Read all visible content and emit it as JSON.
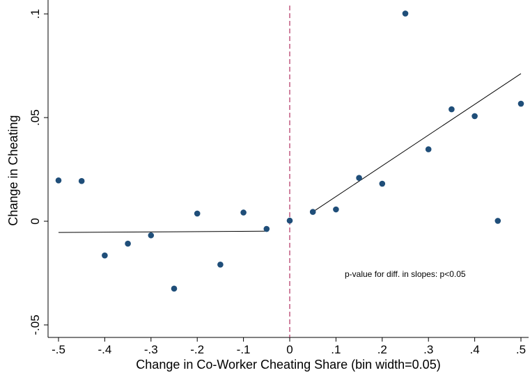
{
  "chart_data": {
    "type": "scatter",
    "xlabel": "Change in Co-Worker Cheating Share (bin width=0.05)",
    "ylabel": "Change in Cheating",
    "xlim": [
      -0.5,
      0.5
    ],
    "ylim": [
      -0.05,
      0.1
    ],
    "x_ticks": [
      -0.5,
      -0.4,
      -0.3,
      -0.2,
      -0.1,
      0,
      0.1,
      0.2,
      0.3,
      0.4,
      0.5
    ],
    "x_tick_labels": [
      "-.5",
      "-.4",
      "-.3",
      "-.2",
      "-.1",
      "0",
      ".1",
      ".2",
      ".3",
      ".4",
      ".5"
    ],
    "y_ticks": [
      -0.05,
      0,
      0.05,
      0.1
    ],
    "y_tick_labels": [
      "-.05",
      "0",
      ".05",
      ".1"
    ],
    "grid": false,
    "legend": "none",
    "series": [
      {
        "type": "scatter",
        "color": "#1f4e79",
        "points": [
          [
            -0.5,
            0.0197
          ],
          [
            -0.45,
            0.0194
          ],
          [
            -0.4,
            -0.0165
          ],
          [
            -0.35,
            -0.0108
          ],
          [
            -0.3,
            -0.0068
          ],
          [
            -0.25,
            -0.0325
          ],
          [
            -0.2,
            0.0037
          ],
          [
            -0.15,
            -0.0209
          ],
          [
            -0.1,
            0.0042
          ],
          [
            -0.05,
            -0.0037
          ],
          [
            0,
            0.0003
          ],
          [
            0.05,
            0.0045
          ],
          [
            0.1,
            0.0057
          ],
          [
            0.15,
            0.0209
          ],
          [
            0.2,
            0.0181
          ],
          [
            0.25,
            0.1002
          ],
          [
            0.3,
            0.0347
          ],
          [
            0.35,
            0.054
          ],
          [
            0.4,
            0.0507
          ],
          [
            0.45,
            0.0002
          ],
          [
            0.5,
            0.0567
          ]
        ]
      },
      {
        "type": "line",
        "color": "#000000",
        "points": [
          [
            -0.5,
            -0.0054
          ],
          [
            -0.05,
            -0.0048
          ]
        ]
      },
      {
        "type": "line",
        "color": "#000000",
        "points": [
          [
            0.05,
            0.0045
          ],
          [
            0.5,
            0.0712
          ]
        ]
      }
    ],
    "vertical_reference_line": {
      "x": 0,
      "color": "#b03060",
      "style": "dashed"
    },
    "annotation": "p-value for diff. in slopes: p<0.05"
  }
}
